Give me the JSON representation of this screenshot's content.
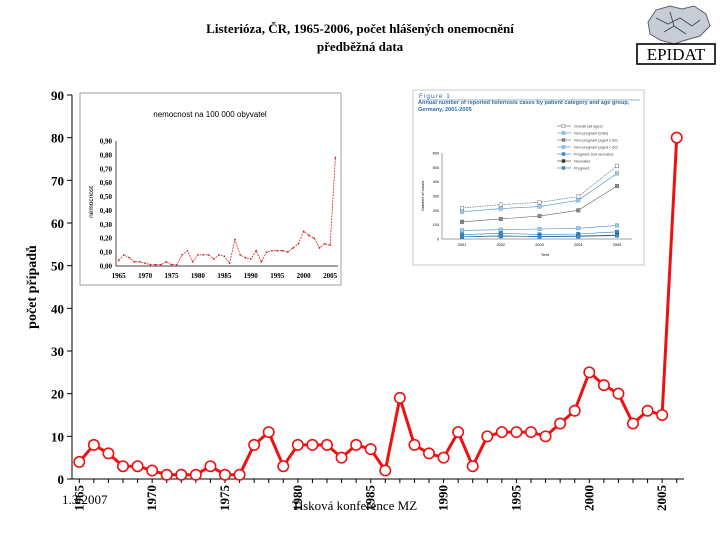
{
  "header": {
    "title_line1": "Listerióza, ČR, 1965-2006, počet hlášených onemocnění",
    "title_line2": "předběžná data"
  },
  "logo": {
    "text": "EPIDAT",
    "icon": "map-of-czech-republic-icon"
  },
  "footer": {
    "date": "1.3.2007",
    "source": "Tisková konference MZ"
  },
  "chart_data": {
    "type": "line",
    "title": "Listerióza, ČR, 1965-2006, počet hlášených onemocnění",
    "ylabel": "počet případů",
    "xlabel": "",
    "ylim": [
      0,
      90
    ],
    "yticks": [
      0,
      10,
      20,
      30,
      40,
      50,
      60,
      70,
      80,
      90
    ],
    "xticks": [
      1965,
      1970,
      1975,
      1980,
      1985,
      1990,
      1995,
      2000,
      2005
    ],
    "x": [
      1965,
      1966,
      1967,
      1968,
      1969,
      1970,
      1971,
      1972,
      1973,
      1974,
      1975,
      1976,
      1977,
      1978,
      1979,
      1980,
      1981,
      1982,
      1983,
      1984,
      1985,
      1986,
      1987,
      1988,
      1989,
      1990,
      1991,
      1992,
      1993,
      1994,
      1995,
      1996,
      1997,
      1998,
      1999,
      2000,
      2001,
      2002,
      2003,
      2004,
      2005,
      2006
    ],
    "values": [
      4,
      8,
      6,
      3,
      3,
      2,
      1,
      1,
      1,
      3,
      1,
      1,
      8,
      11,
      3,
      8,
      8,
      8,
      5,
      8,
      7,
      2,
      19,
      8,
      6,
      5,
      11,
      3,
      10,
      11,
      11,
      11,
      10,
      13,
      16,
      25,
      22,
      20,
      13,
      16,
      15,
      80
    ],
    "series_color": "#ee1111",
    "marker_fill": "#ffffff",
    "grid": false
  },
  "inset_left": {
    "type": "line",
    "title": "nemocnost na 100 000 obyvatel",
    "ylabel": "nemocnost",
    "ylim": [
      0,
      0.9
    ],
    "yticks": [
      "0,00",
      "0,10",
      "0,20",
      "0,30",
      "0,40",
      "0,50",
      "0,60",
      "0,70",
      "0,80",
      "0,90"
    ],
    "xticks": [
      "1965",
      "1970",
      "1975",
      "1980",
      "1985",
      "1990",
      "1995",
      "2000",
      "2005"
    ],
    "x": [
      1965,
      1966,
      1967,
      1968,
      1969,
      1970,
      1971,
      1972,
      1973,
      1974,
      1975,
      1976,
      1977,
      1978,
      1979,
      1980,
      1981,
      1982,
      1983,
      1984,
      1985,
      1986,
      1987,
      1988,
      1989,
      1990,
      1991,
      1992,
      1993,
      1994,
      1995,
      1996,
      1997,
      1998,
      1999,
      2000,
      2001,
      2002,
      2003,
      2004,
      2005,
      2006
    ],
    "values": [
      0.04,
      0.08,
      0.06,
      0.03,
      0.03,
      0.02,
      0.01,
      0.01,
      0.01,
      0.03,
      0.01,
      0.01,
      0.08,
      0.11,
      0.03,
      0.08,
      0.08,
      0.08,
      0.05,
      0.08,
      0.07,
      0.02,
      0.19,
      0.08,
      0.06,
      0.05,
      0.11,
      0.03,
      0.1,
      0.11,
      0.11,
      0.11,
      0.1,
      0.13,
      0.16,
      0.25,
      0.22,
      0.2,
      0.13,
      0.16,
      0.15,
      0.78
    ]
  },
  "inset_right": {
    "figure_label": "Figure 1",
    "title": "Annual number of reported listeriosis cases by patient category and age group, Germany, 2001-2005",
    "ylabel": "Number of cases",
    "xlabel": "Year",
    "ylim": [
      0,
      600
    ],
    "yticks": [
      "0",
      "100",
      "200",
      "300",
      "400",
      "500",
      "600"
    ],
    "categories": [
      "2001",
      "2002",
      "2003",
      "2004",
      "2005"
    ],
    "legend": [
      "Overall (all ages)",
      "Non-pregnant (total)",
      "Non-pregnant (aged ≥ 60)",
      "Non-pregnant (aged < 60)",
      "Pregnant and neonates",
      "Neonates",
      "Pregnant"
    ],
    "series": [
      {
        "name": "Overall (all ages)",
        "values": [
          216,
          240,
          256,
          296,
          510
        ]
      },
      {
        "name": "Non-pregnant (total)",
        "values": [
          190,
          212,
          226,
          270,
          458
        ]
      },
      {
        "name": "Non-pregnant (aged ≥ 60)",
        "values": [
          120,
          140,
          160,
          200,
          370
        ]
      },
      {
        "name": "Non-pregnant (aged < 60)",
        "values": [
          60,
          65,
          70,
          75,
          95
        ]
      },
      {
        "name": "Pregnant and neonates",
        "values": [
          30,
          40,
          32,
          35,
          50
        ]
      },
      {
        "name": "Neonates",
        "values": [
          15,
          20,
          18,
          20,
          28
        ]
      },
      {
        "name": "Pregnant",
        "values": [
          15,
          22,
          16,
          18,
          24
        ]
      }
    ]
  }
}
